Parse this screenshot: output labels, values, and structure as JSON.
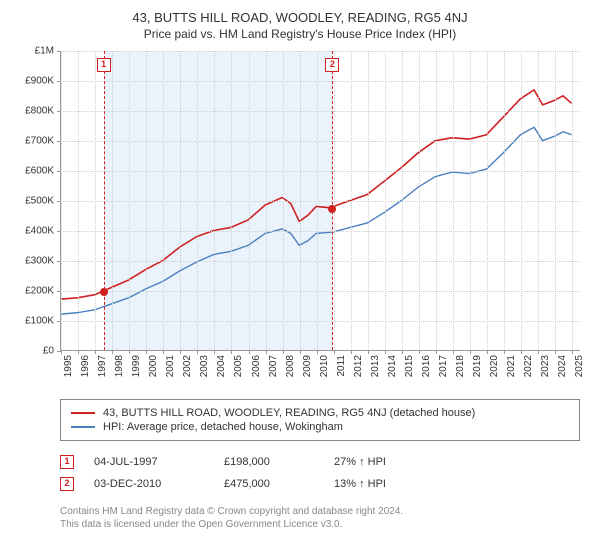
{
  "title": "43, BUTTS HILL ROAD, WOODLEY, READING, RG5 4NJ",
  "subtitle": "Price paid vs. HM Land Registry's House Price Index (HPI)",
  "chart": {
    "type": "line",
    "xlim": [
      1995,
      2025.5
    ],
    "ylim": [
      0,
      1000000
    ],
    "ytick_step": 100000,
    "xtick_step": 1,
    "y_labels": [
      "£0",
      "£100K",
      "£200K",
      "£300K",
      "£400K",
      "£500K",
      "£600K",
      "£700K",
      "£800K",
      "£900K",
      "£1M"
    ],
    "x_labels": [
      "1995",
      "1996",
      "1997",
      "1998",
      "1999",
      "2000",
      "2001",
      "2002",
      "2003",
      "2004",
      "2005",
      "2006",
      "2007",
      "2008",
      "2009",
      "2010",
      "2011",
      "2012",
      "2013",
      "2014",
      "2015",
      "2016",
      "2017",
      "2018",
      "2019",
      "2020",
      "2021",
      "2022",
      "2023",
      "2024",
      "2025"
    ],
    "background_color": "#ffffff",
    "shade_color": "#eaf3fb",
    "grid_color": "#d0d0d0",
    "axis_color": "#999999",
    "title_fontsize": 13,
    "subtitle_fontsize": 12,
    "label_fontsize": 10,
    "series": [
      {
        "name": "property",
        "label": "43, BUTTS HILL ROAD, WOODLEY, READING, RG5 4NJ (detached house)",
        "color": "#d02020",
        "line_width": 1.6,
        "points": [
          [
            1995,
            170000
          ],
          [
            1996,
            175000
          ],
          [
            1997,
            185000
          ],
          [
            1997.5,
            198000
          ],
          [
            1998,
            210000
          ],
          [
            1999,
            235000
          ],
          [
            2000,
            270000
          ],
          [
            2001,
            300000
          ],
          [
            2002,
            345000
          ],
          [
            2003,
            380000
          ],
          [
            2004,
            400000
          ],
          [
            2005,
            410000
          ],
          [
            2006,
            435000
          ],
          [
            2007,
            485000
          ],
          [
            2008,
            510000
          ],
          [
            2008.5,
            490000
          ],
          [
            2009,
            430000
          ],
          [
            2009.5,
            450000
          ],
          [
            2010,
            480000
          ],
          [
            2010.9,
            475000
          ],
          [
            2011,
            480000
          ],
          [
            2012,
            500000
          ],
          [
            2013,
            520000
          ],
          [
            2014,
            565000
          ],
          [
            2015,
            610000
          ],
          [
            2016,
            660000
          ],
          [
            2017,
            700000
          ],
          [
            2018,
            710000
          ],
          [
            2019,
            705000
          ],
          [
            2020,
            720000
          ],
          [
            2021,
            780000
          ],
          [
            2022,
            840000
          ],
          [
            2022.8,
            870000
          ],
          [
            2023.3,
            820000
          ],
          [
            2024,
            835000
          ],
          [
            2024.5,
            850000
          ],
          [
            2025,
            825000
          ]
        ]
      },
      {
        "name": "hpi",
        "label": "HPI: Average price, detached house, Wokingham",
        "color": "#4a80c0",
        "line_width": 1.4,
        "points": [
          [
            1995,
            120000
          ],
          [
            1996,
            125000
          ],
          [
            1997,
            135000
          ],
          [
            1998,
            155000
          ],
          [
            1999,
            175000
          ],
          [
            2000,
            205000
          ],
          [
            2001,
            230000
          ],
          [
            2002,
            265000
          ],
          [
            2003,
            295000
          ],
          [
            2004,
            320000
          ],
          [
            2005,
            330000
          ],
          [
            2006,
            350000
          ],
          [
            2007,
            390000
          ],
          [
            2008,
            405000
          ],
          [
            2008.5,
            390000
          ],
          [
            2009,
            350000
          ],
          [
            2009.5,
            365000
          ],
          [
            2010,
            390000
          ],
          [
            2011,
            395000
          ],
          [
            2012,
            410000
          ],
          [
            2013,
            425000
          ],
          [
            2014,
            460000
          ],
          [
            2015,
            500000
          ],
          [
            2016,
            545000
          ],
          [
            2017,
            580000
          ],
          [
            2018,
            595000
          ],
          [
            2019,
            590000
          ],
          [
            2020,
            605000
          ],
          [
            2021,
            660000
          ],
          [
            2022,
            720000
          ],
          [
            2022.8,
            745000
          ],
          [
            2023.3,
            700000
          ],
          [
            2024,
            715000
          ],
          [
            2024.5,
            730000
          ],
          [
            2025,
            720000
          ]
        ]
      }
    ],
    "sales": [
      {
        "n": "1",
        "x": 1997.5,
        "price": 198000,
        "date": "04-JUL-1997",
        "delta": "27% ↑ HPI",
        "color": "#d02020"
      },
      {
        "n": "2",
        "x": 2010.92,
        "price": 475000,
        "date": "03-DEC-2010",
        "delta": "13% ↑ HPI",
        "color": "#d02020"
      }
    ]
  },
  "legend_header": "",
  "footnote_line1": "Contains HM Land Registry data © Crown copyright and database right 2024.",
  "footnote_line2": "This data is licensed under the Open Government Licence v3.0."
}
